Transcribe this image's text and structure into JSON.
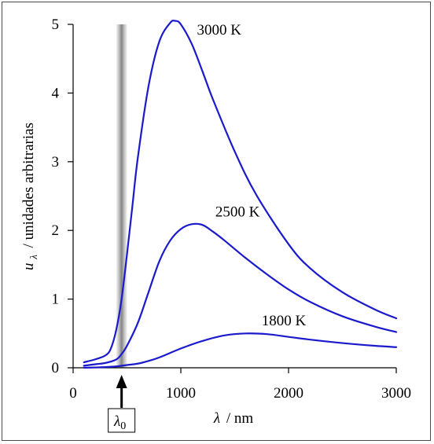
{
  "chart_data": {
    "type": "line",
    "xlabel_symbol": "λ",
    "xlabel_unit": "/ nm",
    "ylabel_symbol": "u",
    "ylabel_subscript": "λ",
    "ylabel_text": "/ unidades arbitrarias",
    "xlim": [
      0,
      3000
    ],
    "ylim": [
      0,
      5
    ],
    "x_ticks": [
      "0",
      "1000",
      "2000",
      "3000"
    ],
    "y_ticks": [
      "0",
      "1",
      "2",
      "3",
      "4",
      "5"
    ],
    "grid": false,
    "marker": {
      "symbol": "λ",
      "subscript": "0",
      "x": 450
    },
    "band": {
      "x_center": 450,
      "width": 100,
      "y_top": 5
    },
    "series": [
      {
        "name": "3000 K",
        "color": "#1a1acc",
        "x": [
          100,
          200,
          300,
          350,
          400,
          450,
          500,
          550,
          600,
          700,
          800,
          900,
          950,
          1000,
          1100,
          1200,
          1300,
          1500,
          1700,
          2000,
          2200,
          2500,
          2800,
          3000
        ],
        "y": [
          0.08,
          0.12,
          0.18,
          0.28,
          0.55,
          1.0,
          1.65,
          2.35,
          3.05,
          4.1,
          4.75,
          5.02,
          5.05,
          5.0,
          4.72,
          4.32,
          3.9,
          3.15,
          2.52,
          1.8,
          1.45,
          1.1,
          0.85,
          0.72
        ]
      },
      {
        "name": "2500 K",
        "color": "#1a1acc",
        "x": [
          100,
          200,
          300,
          400,
          450,
          500,
          600,
          700,
          800,
          900,
          1000,
          1100,
          1200,
          1300,
          1400,
          1600,
          1800,
          2000,
          2200,
          2500,
          2800,
          3000
        ],
        "y": [
          0.03,
          0.05,
          0.07,
          0.12,
          0.2,
          0.32,
          0.65,
          1.1,
          1.55,
          1.85,
          2.02,
          2.09,
          2.08,
          1.98,
          1.86,
          1.6,
          1.36,
          1.14,
          0.96,
          0.75,
          0.6,
          0.52
        ]
      },
      {
        "name": "1800 K",
        "color": "#1a1acc",
        "x": [
          100,
          200,
          300,
          400,
          500,
          600,
          700,
          800,
          1000,
          1200,
          1400,
          1600,
          1800,
          2000,
          2200,
          2500,
          2800,
          3000
        ],
        "y": [
          0.0,
          0.005,
          0.01,
          0.02,
          0.04,
          0.06,
          0.1,
          0.15,
          0.28,
          0.39,
          0.47,
          0.5,
          0.49,
          0.45,
          0.41,
          0.36,
          0.32,
          0.3
        ]
      }
    ]
  }
}
